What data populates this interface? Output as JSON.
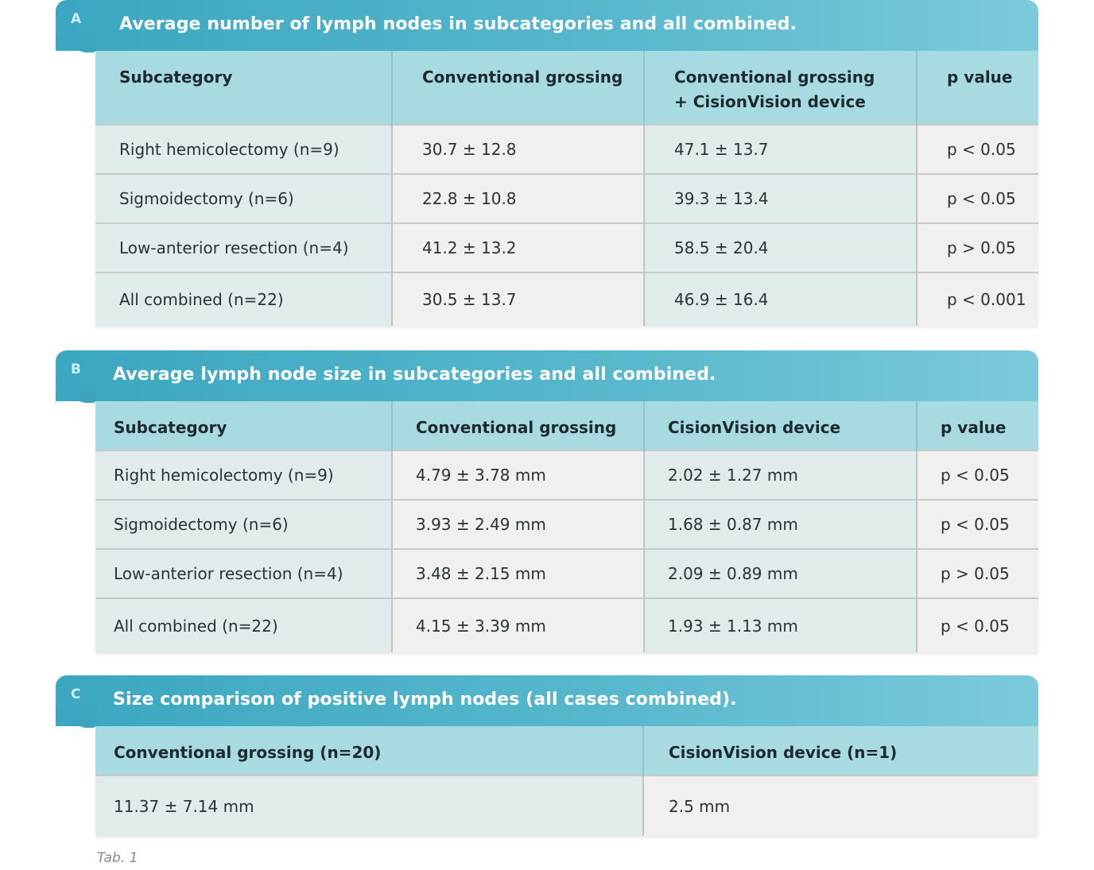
{
  "panels": [
    {
      "letter": "A",
      "title": "Average number of lymph nodes in subcategories and all combined.",
      "headers": [
        "Subcategory",
        "Conventional grossing",
        "Conventional grossing + CisionVision device",
        "p value"
      ],
      "rows": [
        [
          "Right hemicolectomy (n=9)",
          "30.7 ± 12.8",
          "47.1 ± 13.7",
          "p < 0.05"
        ],
        [
          "Sigmoidectomy (n=6)",
          "22.8 ± 10.8",
          "39.3 ± 13.4",
          "p < 0.05"
        ],
        [
          "Low-anterior resection (n=4)",
          "41.2 ± 13.2",
          "58.5 ± 20.4",
          "p > 0.05"
        ],
        [
          "All combined (n=22)",
          "30.5 ± 13.7",
          "46.9 ± 16.4",
          "p < 0.001"
        ]
      ]
    },
    {
      "letter": "B",
      "title": "Average lymph node size in subcategories and all combined.",
      "headers": [
        "Subcategory",
        "Conventional grossing",
        "CisionVision device",
        "p value"
      ],
      "rows": [
        [
          "Right hemicolectomy (n=9)",
          "4.79 ± 3.78 mm",
          "2.02 ± 1.27 mm",
          "p < 0.05"
        ],
        [
          "Sigmoidectomy (n=6)",
          "3.93 ± 2.49 mm",
          "1.68 ± 0.87 mm",
          "p < 0.05"
        ],
        [
          "Low-anterior resection (n=4)",
          "3.48 ± 2.15 mm",
          "2.09 ± 0.89 mm",
          "p > 0.05"
        ],
        [
          "All combined (n=22)",
          "4.15 ± 3.39 mm",
          "1.93 ± 1.13 mm",
          "p < 0.05"
        ]
      ]
    },
    {
      "letter": "C",
      "title": "Size comparison of positive lymph nodes (all cases combined).",
      "headers": [
        "Conventional grossing (n=20)",
        "CisionVision device (n=1)"
      ],
      "rows": [
        [
          "11.37 ± 7.14 mm",
          "2.5 mm"
        ]
      ]
    }
  ],
  "caption": "Tab. 1",
  "colors": {
    "title_bar": "#3ba7c0",
    "header_row": "#a8dae2",
    "cell_teal": "#dfeceb",
    "cell_grey": "#f0f0f0"
  }
}
